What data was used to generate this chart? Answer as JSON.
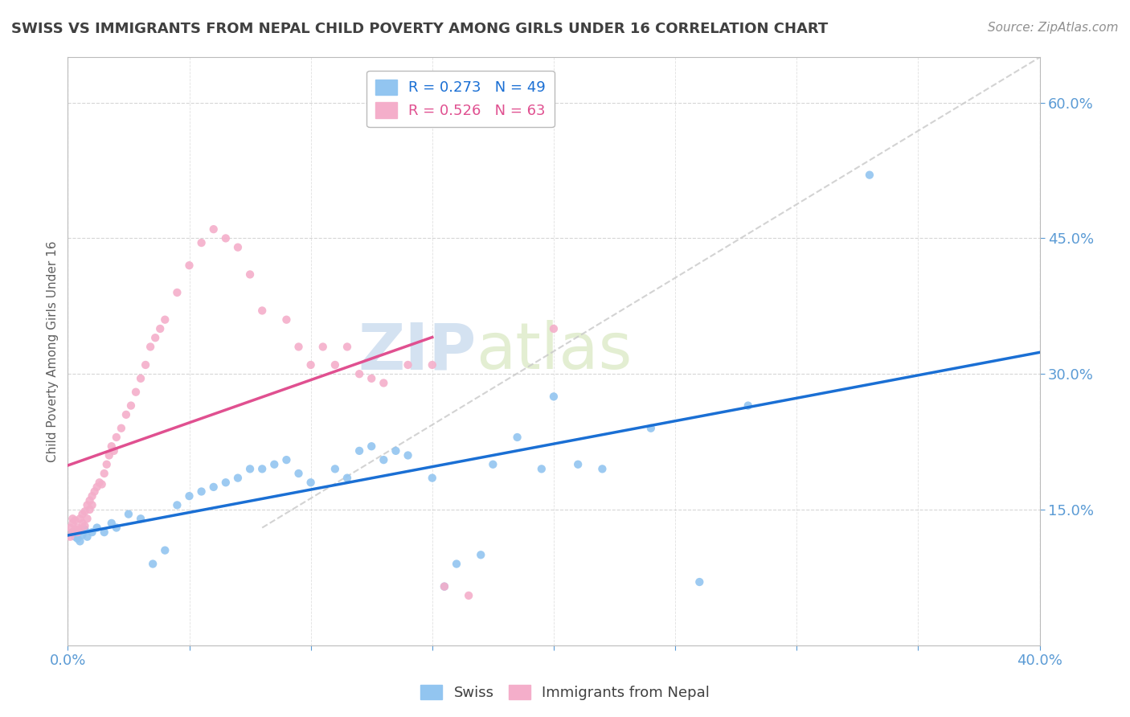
{
  "title": "SWISS VS IMMIGRANTS FROM NEPAL CHILD POVERTY AMONG GIRLS UNDER 16 CORRELATION CHART",
  "source": "Source: ZipAtlas.com",
  "ylabel": "Child Poverty Among Girls Under 16",
  "xlim": [
    0.0,
    0.4
  ],
  "ylim": [
    0.0,
    0.65
  ],
  "ytick_positions": [
    0.15,
    0.3,
    0.45,
    0.6
  ],
  "ytick_labels": [
    "15.0%",
    "30.0%",
    "45.0%",
    "60.0%"
  ],
  "swiss_color": "#92C5F0",
  "nepal_color": "#F4AECA",
  "swiss_line_color": "#1A6FD4",
  "nepal_line_color": "#E05090",
  "trendline_ref_color": "#C8C8C8",
  "swiss_R": 0.273,
  "swiss_N": 49,
  "nepal_R": 0.526,
  "nepal_N": 63,
  "watermark_zip": "ZIP",
  "watermark_atlas": "atlas",
  "background_color": "#FFFFFF",
  "grid_color": "#CCCCCC",
  "axis_label_color": "#5B9BD5",
  "title_color": "#404040",
  "swiss_x": [
    0.002,
    0.003,
    0.004,
    0.005,
    0.006,
    0.007,
    0.008,
    0.01,
    0.012,
    0.015,
    0.018,
    0.02,
    0.025,
    0.03,
    0.035,
    0.04,
    0.045,
    0.05,
    0.055,
    0.06,
    0.065,
    0.07,
    0.075,
    0.08,
    0.085,
    0.09,
    0.095,
    0.1,
    0.11,
    0.115,
    0.12,
    0.125,
    0.13,
    0.135,
    0.14,
    0.15,
    0.155,
    0.16,
    0.17,
    0.175,
    0.185,
    0.195,
    0.2,
    0.21,
    0.22,
    0.24,
    0.26,
    0.28,
    0.33
  ],
  "swiss_y": [
    0.125,
    0.12,
    0.118,
    0.115,
    0.122,
    0.128,
    0.12,
    0.125,
    0.13,
    0.125,
    0.135,
    0.13,
    0.145,
    0.14,
    0.09,
    0.105,
    0.155,
    0.165,
    0.17,
    0.175,
    0.18,
    0.185,
    0.195,
    0.195,
    0.2,
    0.205,
    0.19,
    0.18,
    0.195,
    0.185,
    0.215,
    0.22,
    0.205,
    0.215,
    0.21,
    0.185,
    0.065,
    0.09,
    0.1,
    0.2,
    0.23,
    0.195,
    0.275,
    0.2,
    0.195,
    0.24,
    0.07,
    0.265,
    0.52
  ],
  "nepal_x": [
    0.001,
    0.001,
    0.002,
    0.002,
    0.002,
    0.003,
    0.003,
    0.004,
    0.004,
    0.005,
    0.005,
    0.006,
    0.006,
    0.007,
    0.007,
    0.008,
    0.008,
    0.009,
    0.009,
    0.01,
    0.01,
    0.011,
    0.012,
    0.013,
    0.014,
    0.015,
    0.016,
    0.017,
    0.018,
    0.019,
    0.02,
    0.022,
    0.024,
    0.026,
    0.028,
    0.03,
    0.032,
    0.034,
    0.036,
    0.038,
    0.04,
    0.045,
    0.05,
    0.055,
    0.06,
    0.065,
    0.07,
    0.075,
    0.08,
    0.09,
    0.095,
    0.1,
    0.105,
    0.11,
    0.115,
    0.12,
    0.125,
    0.13,
    0.14,
    0.15,
    0.155,
    0.165,
    0.2
  ],
  "nepal_y": [
    0.12,
    0.13,
    0.125,
    0.135,
    0.14,
    0.128,
    0.138,
    0.13,
    0.125,
    0.128,
    0.14,
    0.135,
    0.145,
    0.132,
    0.148,
    0.14,
    0.155,
    0.15,
    0.16,
    0.155,
    0.165,
    0.17,
    0.175,
    0.18,
    0.178,
    0.19,
    0.2,
    0.21,
    0.22,
    0.215,
    0.23,
    0.24,
    0.255,
    0.265,
    0.28,
    0.295,
    0.31,
    0.33,
    0.34,
    0.35,
    0.36,
    0.39,
    0.42,
    0.445,
    0.46,
    0.45,
    0.44,
    0.41,
    0.37,
    0.36,
    0.33,
    0.31,
    0.33,
    0.31,
    0.33,
    0.3,
    0.295,
    0.29,
    0.31,
    0.31,
    0.065,
    0.055,
    0.35
  ]
}
